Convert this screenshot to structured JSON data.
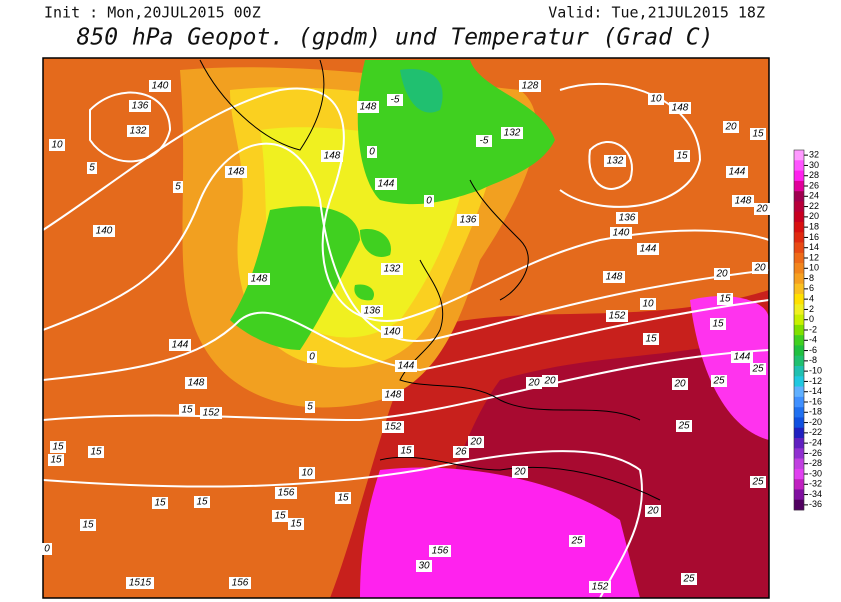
{
  "header": {
    "init": "Init : Mon,20JUL2015 00Z",
    "valid": "Valid: Tue,21JUL2015 18Z",
    "title": "850 hPa Geopot. (gpdm) und Temperatur (Grad C)"
  },
  "colorbar": {
    "levels": [
      32,
      30,
      28,
      26,
      24,
      22,
      20,
      18,
      16,
      14,
      12,
      10,
      8,
      6,
      4,
      2,
      0,
      -2,
      -4,
      -6,
      -8,
      -10,
      -12,
      -14,
      -16,
      -18,
      -20,
      -22,
      -24,
      -26,
      -28,
      -30,
      -32,
      -34,
      -36
    ],
    "colors": [
      "#ff99ff",
      "#ff55ff",
      "#ff22ee",
      "#e0009a",
      "#a00050",
      "#b8003a",
      "#c80020",
      "#d81010",
      "#e02a10",
      "#e84a14",
      "#ee6a18",
      "#f2851c",
      "#f6a020",
      "#fac020",
      "#ffe000",
      "#f0f020",
      "#c8f000",
      "#80e000",
      "#40d020",
      "#20c040",
      "#20c070",
      "#20c0b0",
      "#20c8e0",
      "#60b0ff",
      "#4090ff",
      "#2070f0",
      "#1050e0",
      "#2020c0",
      "#6020c0",
      "#9030d0",
      "#c040e0",
      "#e040f0",
      "#c020c0",
      "#8010a0",
      "#500060"
    ]
  },
  "map_labels": [
    "140",
    "136",
    "132",
    "10",
    "5",
    "148",
    "5",
    "140",
    "144",
    "148",
    "15",
    "152",
    "15",
    "15",
    "15",
    "10",
    "156",
    "15",
    "15",
    "15",
    "15",
    "15",
    "15",
    "0",
    "156",
    "1515",
    "148",
    "0",
    "136",
    "140",
    "144",
    "132",
    "5",
    "148",
    "152",
    "15",
    "26",
    "20",
    "20",
    "20",
    "20",
    "156",
    "30",
    "25",
    "20",
    "152",
    "25",
    "25",
    "20",
    "25",
    "144",
    "25",
    "15",
    "15",
    "20",
    "20",
    "148",
    "10",
    "152",
    "15",
    "144",
    "140",
    "136",
    "132",
    "148",
    "20",
    "144",
    "15",
    "15",
    "20",
    "148",
    "10",
    "128",
    "132",
    "-5",
    "-5",
    "148",
    "144",
    "148",
    "0",
    "136",
    "0",
    "25"
  ]
}
